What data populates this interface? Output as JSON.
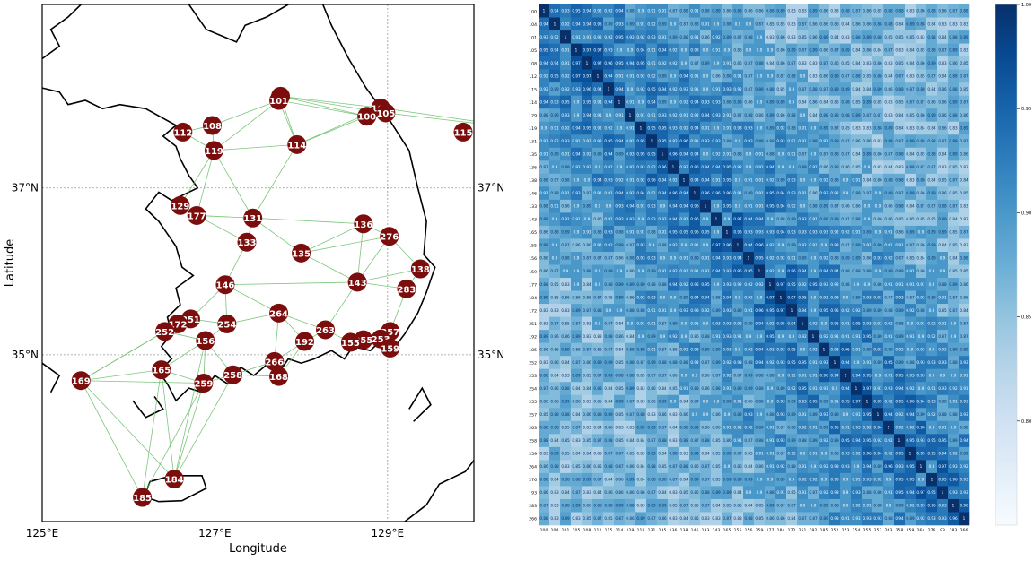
{
  "chart_data": [
    {
      "type": "scatter",
      "subtype": "station-network-map",
      "title": "",
      "xlabel": "Longitude",
      "ylabel": "Latitude",
      "xlim": [
        125.0,
        130.0
      ],
      "ylim": [
        33.0,
        39.2
      ],
      "x_ticks": [
        {
          "value": 125,
          "label": "125°E"
        },
        {
          "value": 127,
          "label": "127°E"
        },
        {
          "value": 129,
          "label": "129°E"
        }
      ],
      "y_ticks": [
        {
          "value": 35,
          "label": "35°N"
        },
        {
          "value": 37,
          "label": "37°N"
        }
      ],
      "grid": true,
      "colors": {
        "node": "#7b0d0d",
        "edge": "#6dbf6d",
        "coast": "#000000",
        "grid": "#999999"
      },
      "stations": [
        {
          "id": "93",
          "lon": 127.76,
          "lat": 38.1
        },
        {
          "id": "101",
          "lon": 127.74,
          "lat": 38.05
        },
        {
          "id": "104",
          "lon": 128.92,
          "lat": 37.96
        },
        {
          "id": "105",
          "lon": 128.98,
          "lat": 37.9
        },
        {
          "id": "100",
          "lon": 128.76,
          "lat": 37.86
        },
        {
          "id": "108",
          "lon": 126.97,
          "lat": 37.75
        },
        {
          "id": "112",
          "lon": 126.63,
          "lat": 37.67
        },
        {
          "id": "119",
          "lon": 126.99,
          "lat": 37.45
        },
        {
          "id": "114",
          "lon": 127.95,
          "lat": 37.52
        },
        {
          "id": "115",
          "lon": 130.91,
          "lat": 37.67
        },
        {
          "id": "129",
          "lon": 126.6,
          "lat": 36.79
        },
        {
          "id": "177",
          "lon": 126.79,
          "lat": 36.67
        },
        {
          "id": "131",
          "lon": 127.44,
          "lat": 36.64
        },
        {
          "id": "133",
          "lon": 127.37,
          "lat": 36.35
        },
        {
          "id": "135",
          "lon": 128.0,
          "lat": 36.22
        },
        {
          "id": "136",
          "lon": 128.72,
          "lat": 36.57
        },
        {
          "id": "276",
          "lon": 129.02,
          "lat": 36.42
        },
        {
          "id": "138",
          "lon": 129.38,
          "lat": 36.03
        },
        {
          "id": "143",
          "lon": 128.65,
          "lat": 35.87
        },
        {
          "id": "283",
          "lon": 129.22,
          "lat": 35.79
        },
        {
          "id": "146",
          "lon": 127.12,
          "lat": 35.84
        },
        {
          "id": "264",
          "lon": 127.74,
          "lat": 35.5
        },
        {
          "id": "251",
          "lon": 126.72,
          "lat": 35.43
        },
        {
          "id": "172",
          "lon": 126.57,
          "lat": 35.37
        },
        {
          "id": "252",
          "lon": 126.42,
          "lat": 35.28
        },
        {
          "id": "254",
          "lon": 127.14,
          "lat": 35.37
        },
        {
          "id": "156",
          "lon": 126.89,
          "lat": 35.17
        },
        {
          "id": "263",
          "lon": 128.28,
          "lat": 35.3
        },
        {
          "id": "257",
          "lon": 129.03,
          "lat": 35.28
        },
        {
          "id": "253",
          "lon": 128.92,
          "lat": 35.19
        },
        {
          "id": "255",
          "lon": 128.72,
          "lat": 35.18
        },
        {
          "id": "155",
          "lon": 128.57,
          "lat": 35.15
        },
        {
          "id": "159",
          "lon": 129.03,
          "lat": 35.08
        },
        {
          "id": "192",
          "lon": 128.04,
          "lat": 35.16
        },
        {
          "id": "266",
          "lon": 127.69,
          "lat": 34.92
        },
        {
          "id": "168",
          "lon": 127.74,
          "lat": 34.74
        },
        {
          "id": "165",
          "lon": 126.38,
          "lat": 34.82
        },
        {
          "id": "258",
          "lon": 127.21,
          "lat": 34.76
        },
        {
          "id": "259",
          "lon": 126.87,
          "lat": 34.66
        },
        {
          "id": "169",
          "lon": 125.45,
          "lat": 34.69
        },
        {
          "id": "184",
          "lon": 126.53,
          "lat": 33.51
        },
        {
          "id": "185",
          "lon": 126.16,
          "lat": 33.29
        }
      ],
      "edges": [
        [
          "93",
          "101"
        ],
        [
          "93",
          "104"
        ],
        [
          "93",
          "105"
        ],
        [
          "93",
          "100"
        ],
        [
          "93",
          "114"
        ],
        [
          "101",
          "114"
        ],
        [
          "101",
          "108"
        ],
        [
          "104",
          "115"
        ],
        [
          "105",
          "115"
        ],
        [
          "100",
          "114"
        ],
        [
          "104",
          "114"
        ],
        [
          "101",
          "100"
        ],
        [
          "101",
          "119"
        ],
        [
          "108",
          "112"
        ],
        [
          "108",
          "119"
        ],
        [
          "112",
          "119"
        ],
        [
          "119",
          "114"
        ],
        [
          "119",
          "131"
        ],
        [
          "119",
          "129"
        ],
        [
          "119",
          "177"
        ],
        [
          "114",
          "131"
        ],
        [
          "129",
          "177"
        ],
        [
          "177",
          "131"
        ],
        [
          "131",
          "133"
        ],
        [
          "131",
          "135"
        ],
        [
          "133",
          "177"
        ],
        [
          "131",
          "136"
        ],
        [
          "135",
          "136"
        ],
        [
          "135",
          "276"
        ],
        [
          "136",
          "276"
        ],
        [
          "276",
          "138"
        ],
        [
          "136",
          "143"
        ],
        [
          "143",
          "276"
        ],
        [
          "143",
          "138"
        ],
        [
          "143",
          "283"
        ],
        [
          "138",
          "283"
        ],
        [
          "135",
          "143"
        ],
        [
          "133",
          "146"
        ],
        [
          "146",
          "254"
        ],
        [
          "146",
          "264"
        ],
        [
          "146",
          "251"
        ],
        [
          "146",
          "143"
        ],
        [
          "254",
          "264"
        ],
        [
          "254",
          "251"
        ],
        [
          "254",
          "156"
        ],
        [
          "264",
          "263"
        ],
        [
          "264",
          "192"
        ],
        [
          "263",
          "155"
        ],
        [
          "263",
          "143"
        ],
        [
          "263",
          "192"
        ],
        [
          "255",
          "155"
        ],
        [
          "255",
          "253"
        ],
        [
          "253",
          "257"
        ],
        [
          "253",
          "159"
        ],
        [
          "257",
          "159"
        ],
        [
          "257",
          "283"
        ],
        [
          "255",
          "159"
        ],
        [
          "192",
          "266"
        ],
        [
          "266",
          "168"
        ],
        [
          "192",
          "168"
        ],
        [
          "251",
          "172"
        ],
        [
          "172",
          "252"
        ],
        [
          "252",
          "156"
        ],
        [
          "156",
          "165"
        ],
        [
          "156",
          "259"
        ],
        [
          "165",
          "259"
        ],
        [
          "259",
          "258"
        ],
        [
          "258",
          "266"
        ],
        [
          "258",
          "168"
        ],
        [
          "252",
          "169"
        ],
        [
          "165",
          "169"
        ],
        [
          "169",
          "259"
        ],
        [
          "169",
          "184"
        ],
        [
          "169",
          "185"
        ],
        [
          "165",
          "184"
        ],
        [
          "165",
          "185"
        ],
        [
          "259",
          "184"
        ],
        [
          "258",
          "184"
        ],
        [
          "259",
          "185"
        ],
        [
          "156",
          "258"
        ],
        [
          "264",
          "266"
        ],
        [
          "172",
          "169"
        ],
        [
          "155",
          "253"
        ],
        [
          "156",
          "184"
        ]
      ]
    },
    {
      "type": "heatmap",
      "title": "",
      "xlabel": "",
      "ylabel": "",
      "labels": [
        "100",
        "104",
        "101",
        "105",
        "108",
        "112",
        "115",
        "114",
        "129",
        "119",
        "131",
        "135",
        "136",
        "138",
        "146",
        "133",
        "143",
        "165",
        "155",
        "156",
        "159",
        "177",
        "184",
        "172",
        "251",
        "192",
        "185",
        "252",
        "253",
        "254",
        "255",
        "257",
        "263",
        "258",
        "259",
        "264",
        "276",
        "93",
        "283",
        "266"
      ],
      "diagonal_value": 1,
      "value_range": [
        0.77,
        0.99
      ],
      "colorbar": {
        "min": 0.75,
        "max": 1.0,
        "ticks": [
          {
            "value": 1.0,
            "label": "1.00"
          },
          {
            "value": 0.95,
            "label": "0.95"
          },
          {
            "value": 0.9,
            "label": "0.90"
          },
          {
            "value": 0.85,
            "label": "0.85"
          },
          {
            "value": 0.8,
            "label": "0.80"
          }
        ]
      },
      "colormap": "Blues",
      "typical_off_diagonal": 0.91
    }
  ]
}
